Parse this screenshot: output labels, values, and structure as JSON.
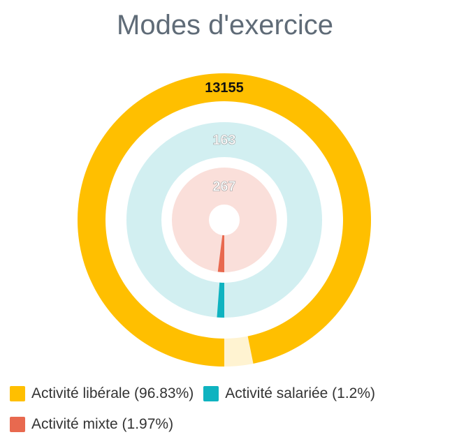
{
  "chart_data": {
    "type": "pie",
    "title": "Modes d'exercice",
    "series": [
      {
        "name": "Activité libérale",
        "value": 13155,
        "percent": 96.83,
        "legend_label": "Activité libérale (96.83%)",
        "color": "#ffbf00",
        "track_color": "#fff3d1"
      },
      {
        "name": "Activité salariée",
        "value": 163,
        "percent": 1.2,
        "legend_label": "Activité salariée (1.2%)",
        "color": "#0fb3c0",
        "track_color": "#d2eff1"
      },
      {
        "name": "Activité mixte",
        "value": 267,
        "percent": 1.97,
        "legend_label": "Activité mixte (1.97%)",
        "color": "#e8694f",
        "track_color": "#fadfda"
      }
    ],
    "legend_position": "bottom"
  }
}
